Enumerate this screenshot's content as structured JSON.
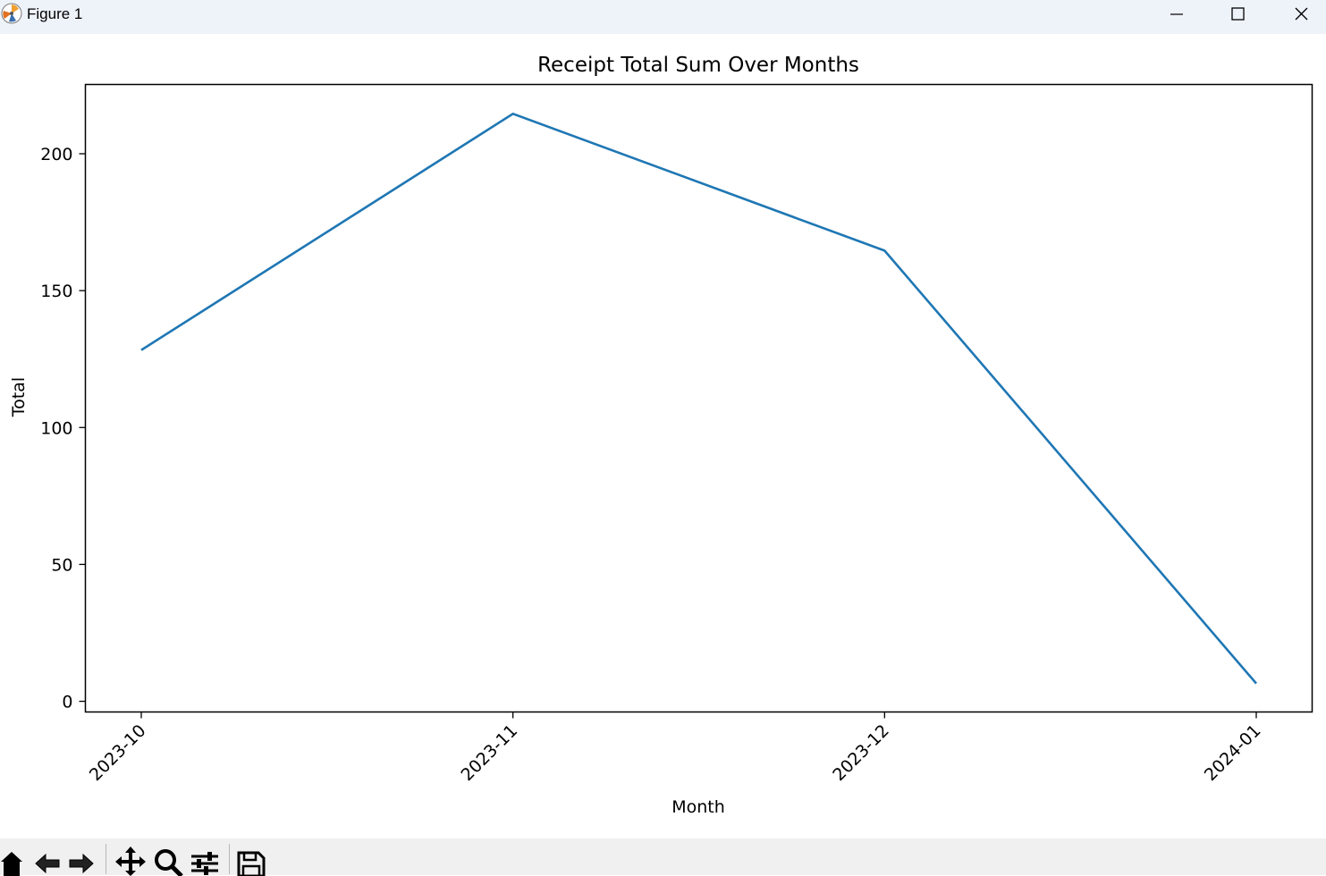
{
  "window": {
    "title": "Figure 1",
    "app_icon": "matplotlib-logo-icon",
    "controls": [
      "minimize-icon",
      "maximize-icon",
      "close-icon"
    ]
  },
  "toolbar": {
    "tools": [
      "home-icon",
      "back-arrow-icon",
      "forward-arrow-icon",
      "pan-icon",
      "zoom-icon",
      "configure-subplots-icon",
      "save-icon"
    ]
  },
  "colors": {
    "line": "#1f77b4",
    "titlebar": "#eef2f9",
    "toolbar": "#f0f0f0"
  },
  "chart_data": {
    "type": "line",
    "title": "Receipt Total Sum Over Months",
    "xlabel": "Month",
    "ylabel": "Total",
    "categories": [
      "2023-10",
      "2023-11",
      "2023-12",
      "2024-01"
    ],
    "values": [
      128.3,
      214.6,
      164.6,
      6.5
    ],
    "ylim": [
      -3.9,
      225.3
    ],
    "yticks": [
      0,
      50,
      100,
      150,
      200
    ],
    "xtick_rotation": 45,
    "grid": false,
    "legend": false
  }
}
